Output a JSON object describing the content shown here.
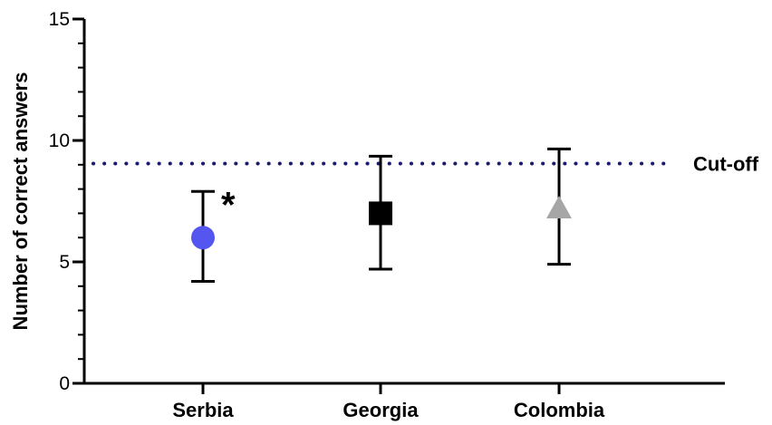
{
  "chart_data": {
    "type": "scatter",
    "ylabel": "Number of correct answers",
    "xlabel": "",
    "ylim": [
      0,
      15
    ],
    "yticks": [
      0,
      5,
      10,
      15
    ],
    "ytick_labels": [
      "0",
      "5",
      "10",
      "15"
    ],
    "y_minor_step": 1,
    "grid": false,
    "categories": [
      "Serbia",
      "Georgia",
      "Colombia"
    ],
    "points": [
      {
        "category": "Serbia",
        "mean": 6.0,
        "lower": 4.2,
        "upper": 7.9,
        "marker": "circle",
        "color": "#5555f0",
        "annotation": "*"
      },
      {
        "category": "Georgia",
        "mean": 7.0,
        "lower": 4.7,
        "upper": 9.35,
        "marker": "square",
        "color": "#000000",
        "annotation": ""
      },
      {
        "category": "Colombia",
        "mean": 7.2,
        "lower": 4.9,
        "upper": 9.65,
        "marker": "triangle",
        "color": "#a6a6a6",
        "annotation": ""
      }
    ],
    "reference_line": {
      "value": 9.05,
      "label": "Cut-off",
      "style": "dotted",
      "color": "#1a1a6e"
    }
  }
}
